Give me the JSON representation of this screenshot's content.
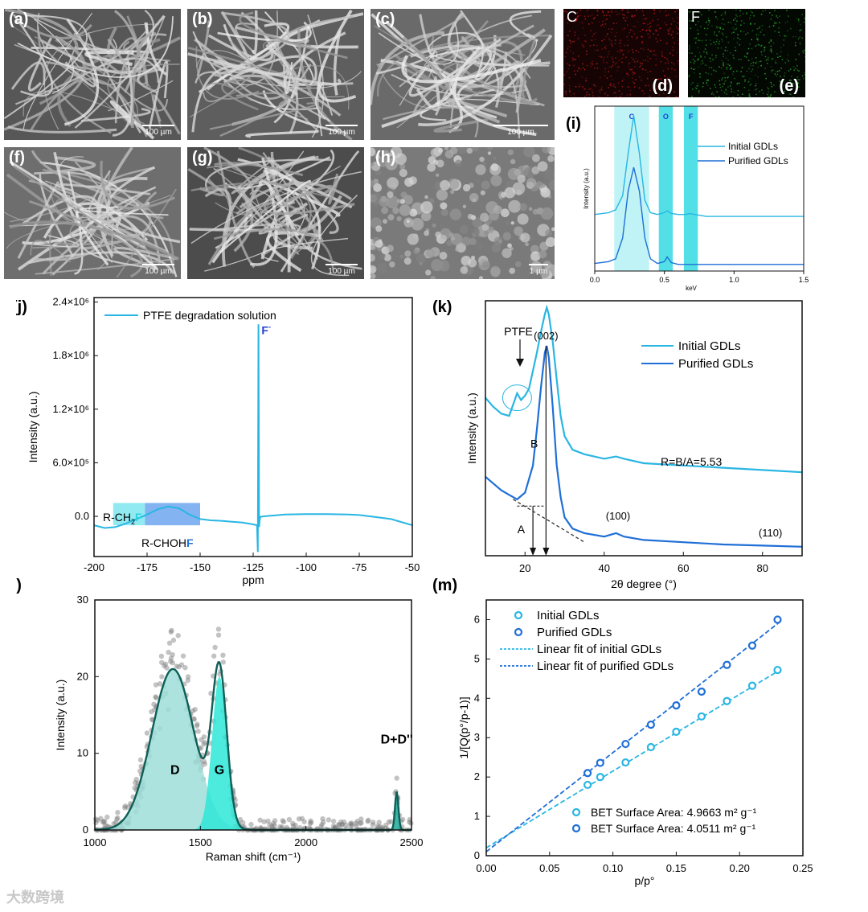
{
  "sem_panels": [
    {
      "label": "(a)",
      "scale": "100 µm",
      "tone": "#575757"
    },
    {
      "label": "(b)",
      "scale": "100 µm",
      "tone": "#5e5e5e"
    },
    {
      "label": "(c)",
      "scale": "100 µm",
      "tone": "#6a6a6a"
    },
    {
      "label": "(f)",
      "scale": "100 µm",
      "tone": "#6e6e6e"
    },
    {
      "label": "(g)",
      "scale": "100 µm",
      "tone": "#4c4c4c"
    },
    {
      "label": "(h)",
      "scale": "1 µm",
      "tone": "#7a7a7a"
    }
  ],
  "maps": [
    {
      "element": "C",
      "label": "(d)",
      "color": "#b11a1a"
    },
    {
      "element": "F",
      "label": "(e)",
      "color": "#2aa32a"
    }
  ],
  "watermark": "大数跨境",
  "chart_data": [
    {
      "id": "i",
      "panel_label": "(i)",
      "type": "line",
      "xlabel": "keV",
      "ylabel": "Intensity (a.u.)",
      "xlim": [
        0,
        1.5
      ],
      "xticks": [
        "0.0",
        "0.5",
        "1.0",
        "1.5"
      ],
      "bands": [
        {
          "label": "C",
          "x0": 0.14,
          "x1": 0.39,
          "color": "#bff3f5"
        },
        {
          "label": "O",
          "x0": 0.46,
          "x1": 0.56,
          "color": "#52e0e6"
        },
        {
          "label": "F",
          "x0": 0.64,
          "x1": 0.74,
          "color": "#52e0e6"
        }
      ],
      "series": [
        {
          "name": "Initial GDLs",
          "color": "#29b6e3",
          "x": [
            0.0,
            0.1,
            0.15,
            0.2,
            0.24,
            0.28,
            0.32,
            0.36,
            0.4,
            0.45,
            0.5,
            0.52,
            0.55,
            0.6,
            0.65,
            0.68,
            0.72,
            0.8,
            1.0,
            1.5
          ],
          "y": [
            0.55,
            0.57,
            0.6,
            0.75,
            1.2,
            1.6,
            1.2,
            0.7,
            0.57,
            0.55,
            0.57,
            0.59,
            0.56,
            0.55,
            0.55,
            0.56,
            0.55,
            0.53,
            0.53,
            0.53
          ]
        },
        {
          "name": "Purified GDLs",
          "color": "#1f6fd6",
          "x": [
            0.0,
            0.1,
            0.15,
            0.2,
            0.24,
            0.28,
            0.32,
            0.36,
            0.4,
            0.45,
            0.5,
            0.52,
            0.55,
            0.6,
            0.7,
            0.8,
            1.0,
            1.5
          ],
          "y": [
            0.03,
            0.05,
            0.08,
            0.3,
            0.8,
            1.05,
            0.8,
            0.3,
            0.08,
            0.03,
            0.05,
            0.1,
            0.04,
            0.02,
            0.02,
            0.02,
            0.02,
            0.02
          ]
        }
      ]
    },
    {
      "id": "j",
      "panel_label": "(j)",
      "type": "line",
      "xlabel": "ppm",
      "ylabel": "Intensity (a.u.)",
      "xlim": [
        -200,
        -50
      ],
      "ylim": [
        -450000,
        2450000
      ],
      "xticks": [
        "-200",
        "-175",
        "-150",
        "-125",
        "-100",
        "-75",
        "-50"
      ],
      "yticks": [
        "0.0",
        "6.0×10⁵",
        "1.2×10⁶",
        "1.8×10⁶",
        "2.4×10⁶"
      ],
      "series": [
        {
          "name": "PTFE degradation solution",
          "color": "#29b6e3",
          "x": [
            -200,
            -195,
            -190,
            -185,
            -180,
            -175,
            -170,
            -165,
            -160,
            -155,
            -150,
            -145,
            -140,
            -135,
            -130,
            -125,
            -123.2,
            -122.8,
            -122.5,
            -122.2,
            -121.9,
            -121.5,
            -120,
            -115,
            -110,
            -100,
            -90,
            -80,
            -75,
            -70,
            -60,
            -50
          ],
          "y": [
            -100000,
            -130000,
            -120000,
            -80000,
            -30000,
            20000,
            80000,
            110000,
            90000,
            20000,
            -30000,
            -45000,
            -50000,
            -60000,
            -70000,
            -90000,
            -100000,
            -400000,
            2150000,
            -120000,
            -30000,
            -5000,
            0,
            10000,
            20000,
            25000,
            25000,
            20000,
            15000,
            0,
            -30000,
            -100000
          ]
        }
      ],
      "annotations": [
        {
          "text": "R-CH",
          "sub": "2",
          "accent": "F",
          "accent_color": "#2fd3e0"
        },
        {
          "text": "R-CHOH",
          "accent": "F",
          "accent_color": "#1f6fd6"
        },
        {
          "text": "F",
          "sup": "-",
          "color": "#1f3fd6"
        }
      ],
      "regions": [
        {
          "x0": -191,
          "x1": -176,
          "y0": -100000,
          "y1": 150000,
          "color": "#7ee6ee"
        },
        {
          "x0": -176,
          "x1": -150,
          "y0": -100000,
          "y1": 150000,
          "color": "#6ea6f0"
        }
      ]
    },
    {
      "id": "k",
      "panel_label": "(k)",
      "type": "line",
      "xlabel": "2θ degree (°)",
      "ylabel": "Intensity (a.u.)",
      "xlim": [
        10,
        90
      ],
      "xticks": [
        "20",
        "40",
        "60",
        "80"
      ],
      "series": [
        {
          "name": "Initial GDLs",
          "color": "#29b6e3",
          "x": [
            10,
            12,
            14,
            16,
            17,
            18,
            19,
            20,
            21,
            22,
            23,
            24,
            25,
            25.5,
            26,
            27,
            28,
            29,
            30,
            32,
            35,
            40,
            43,
            45,
            50,
            60,
            70,
            80,
            90
          ],
          "y": [
            0.7,
            0.66,
            0.63,
            0.62,
            0.67,
            0.72,
            0.69,
            0.71,
            0.74,
            0.82,
            0.9,
            0.99,
            1.07,
            1.1,
            1.07,
            0.95,
            0.78,
            0.62,
            0.53,
            0.47,
            0.45,
            0.43,
            0.44,
            0.43,
            0.41,
            0.4,
            0.39,
            0.38,
            0.37
          ]
        },
        {
          "name": "Purified GDLs",
          "color": "#1f6fd6",
          "x": [
            10,
            12,
            14,
            16,
            18,
            20,
            22,
            23,
            24,
            25,
            25.5,
            26,
            27,
            28,
            29,
            30,
            32,
            35,
            40,
            43,
            45,
            50,
            60,
            70,
            80,
            90
          ],
          "y": [
            0.35,
            0.32,
            0.29,
            0.27,
            0.25,
            0.28,
            0.4,
            0.56,
            0.74,
            0.9,
            0.93,
            0.88,
            0.66,
            0.4,
            0.26,
            0.17,
            0.12,
            0.1,
            0.085,
            0.1,
            0.085,
            0.07,
            0.06,
            0.05,
            0.045,
            0.04
          ]
        }
      ],
      "annotations": [
        "PTFE",
        "(002)",
        "(100)",
        "(110)",
        "A",
        "B",
        "R=B/A=5.53"
      ]
    },
    {
      "id": "l",
      "panel_label": "(l)",
      "type": "area",
      "xlabel": "Raman shift (cm⁻¹)",
      "ylabel": "Intensity (a.u.)",
      "xlim": [
        1000,
        2500
      ],
      "ylim": [
        0,
        30
      ],
      "xticks": [
        "1000",
        "1500",
        "2000",
        "2500"
      ],
      "yticks": [
        "0",
        "10",
        "20",
        "30"
      ],
      "peaks": [
        {
          "name": "D",
          "center": 1370,
          "height": 21,
          "width": 100,
          "color": "#9fded8"
        },
        {
          "name": "G",
          "center": 1590,
          "height": 20,
          "width": 35,
          "color": "#2ee6d8"
        },
        {
          "name": "D+D''",
          "center": 2430,
          "height": 5,
          "width": 8,
          "color": "#1fa99a"
        }
      ],
      "fit_color": "#0d5f57",
      "points_color": "#7a7a7a"
    },
    {
      "id": "m",
      "panel_label": "(m)",
      "type": "scatter",
      "xlabel": "p/p°",
      "ylabel": "1/[Q(p°/p-1)]",
      "xlim": [
        0,
        0.25
      ],
      "ylim": [
        0,
        6.5
      ],
      "xticks": [
        "0.00",
        "0.05",
        "0.10",
        "0.15",
        "0.20",
        "0.25"
      ],
      "yticks": [
        "0",
        "1",
        "2",
        "3",
        "4",
        "5",
        "6"
      ],
      "series": [
        {
          "name": "Initial GDLs",
          "color": "#29b6e3",
          "x": [
            0.08,
            0.09,
            0.11,
            0.13,
            0.15,
            0.17,
            0.19,
            0.21,
            0.23
          ],
          "y": [
            1.8,
            2.0,
            2.37,
            2.76,
            3.15,
            3.54,
            3.93,
            4.32,
            4.72
          ]
        },
        {
          "name": "Purified GDLs",
          "color": "#1f6fd6",
          "x": [
            0.08,
            0.09,
            0.11,
            0.13,
            0.15,
            0.17,
            0.19,
            0.21,
            0.23
          ],
          "y": [
            2.1,
            2.36,
            2.84,
            3.33,
            3.82,
            4.17,
            4.85,
            5.34,
            6.0
          ]
        }
      ],
      "fits": [
        {
          "name": "Linear fit of initial GDLs",
          "color": "#29b6e3",
          "intercept": 0.2,
          "slope": 19.5
        },
        {
          "name": "Linear fit of purified GDLs",
          "color": "#1f6fd6",
          "intercept": 0.1,
          "slope": 25.2
        }
      ],
      "bet": [
        {
          "text": "BET Surface Area: 4.9663 m² g⁻¹",
          "color": "#29b6e3"
        },
        {
          "text": "BET Surface Area: 4.0511 m² g⁻¹",
          "color": "#1f6fd6"
        }
      ]
    }
  ]
}
